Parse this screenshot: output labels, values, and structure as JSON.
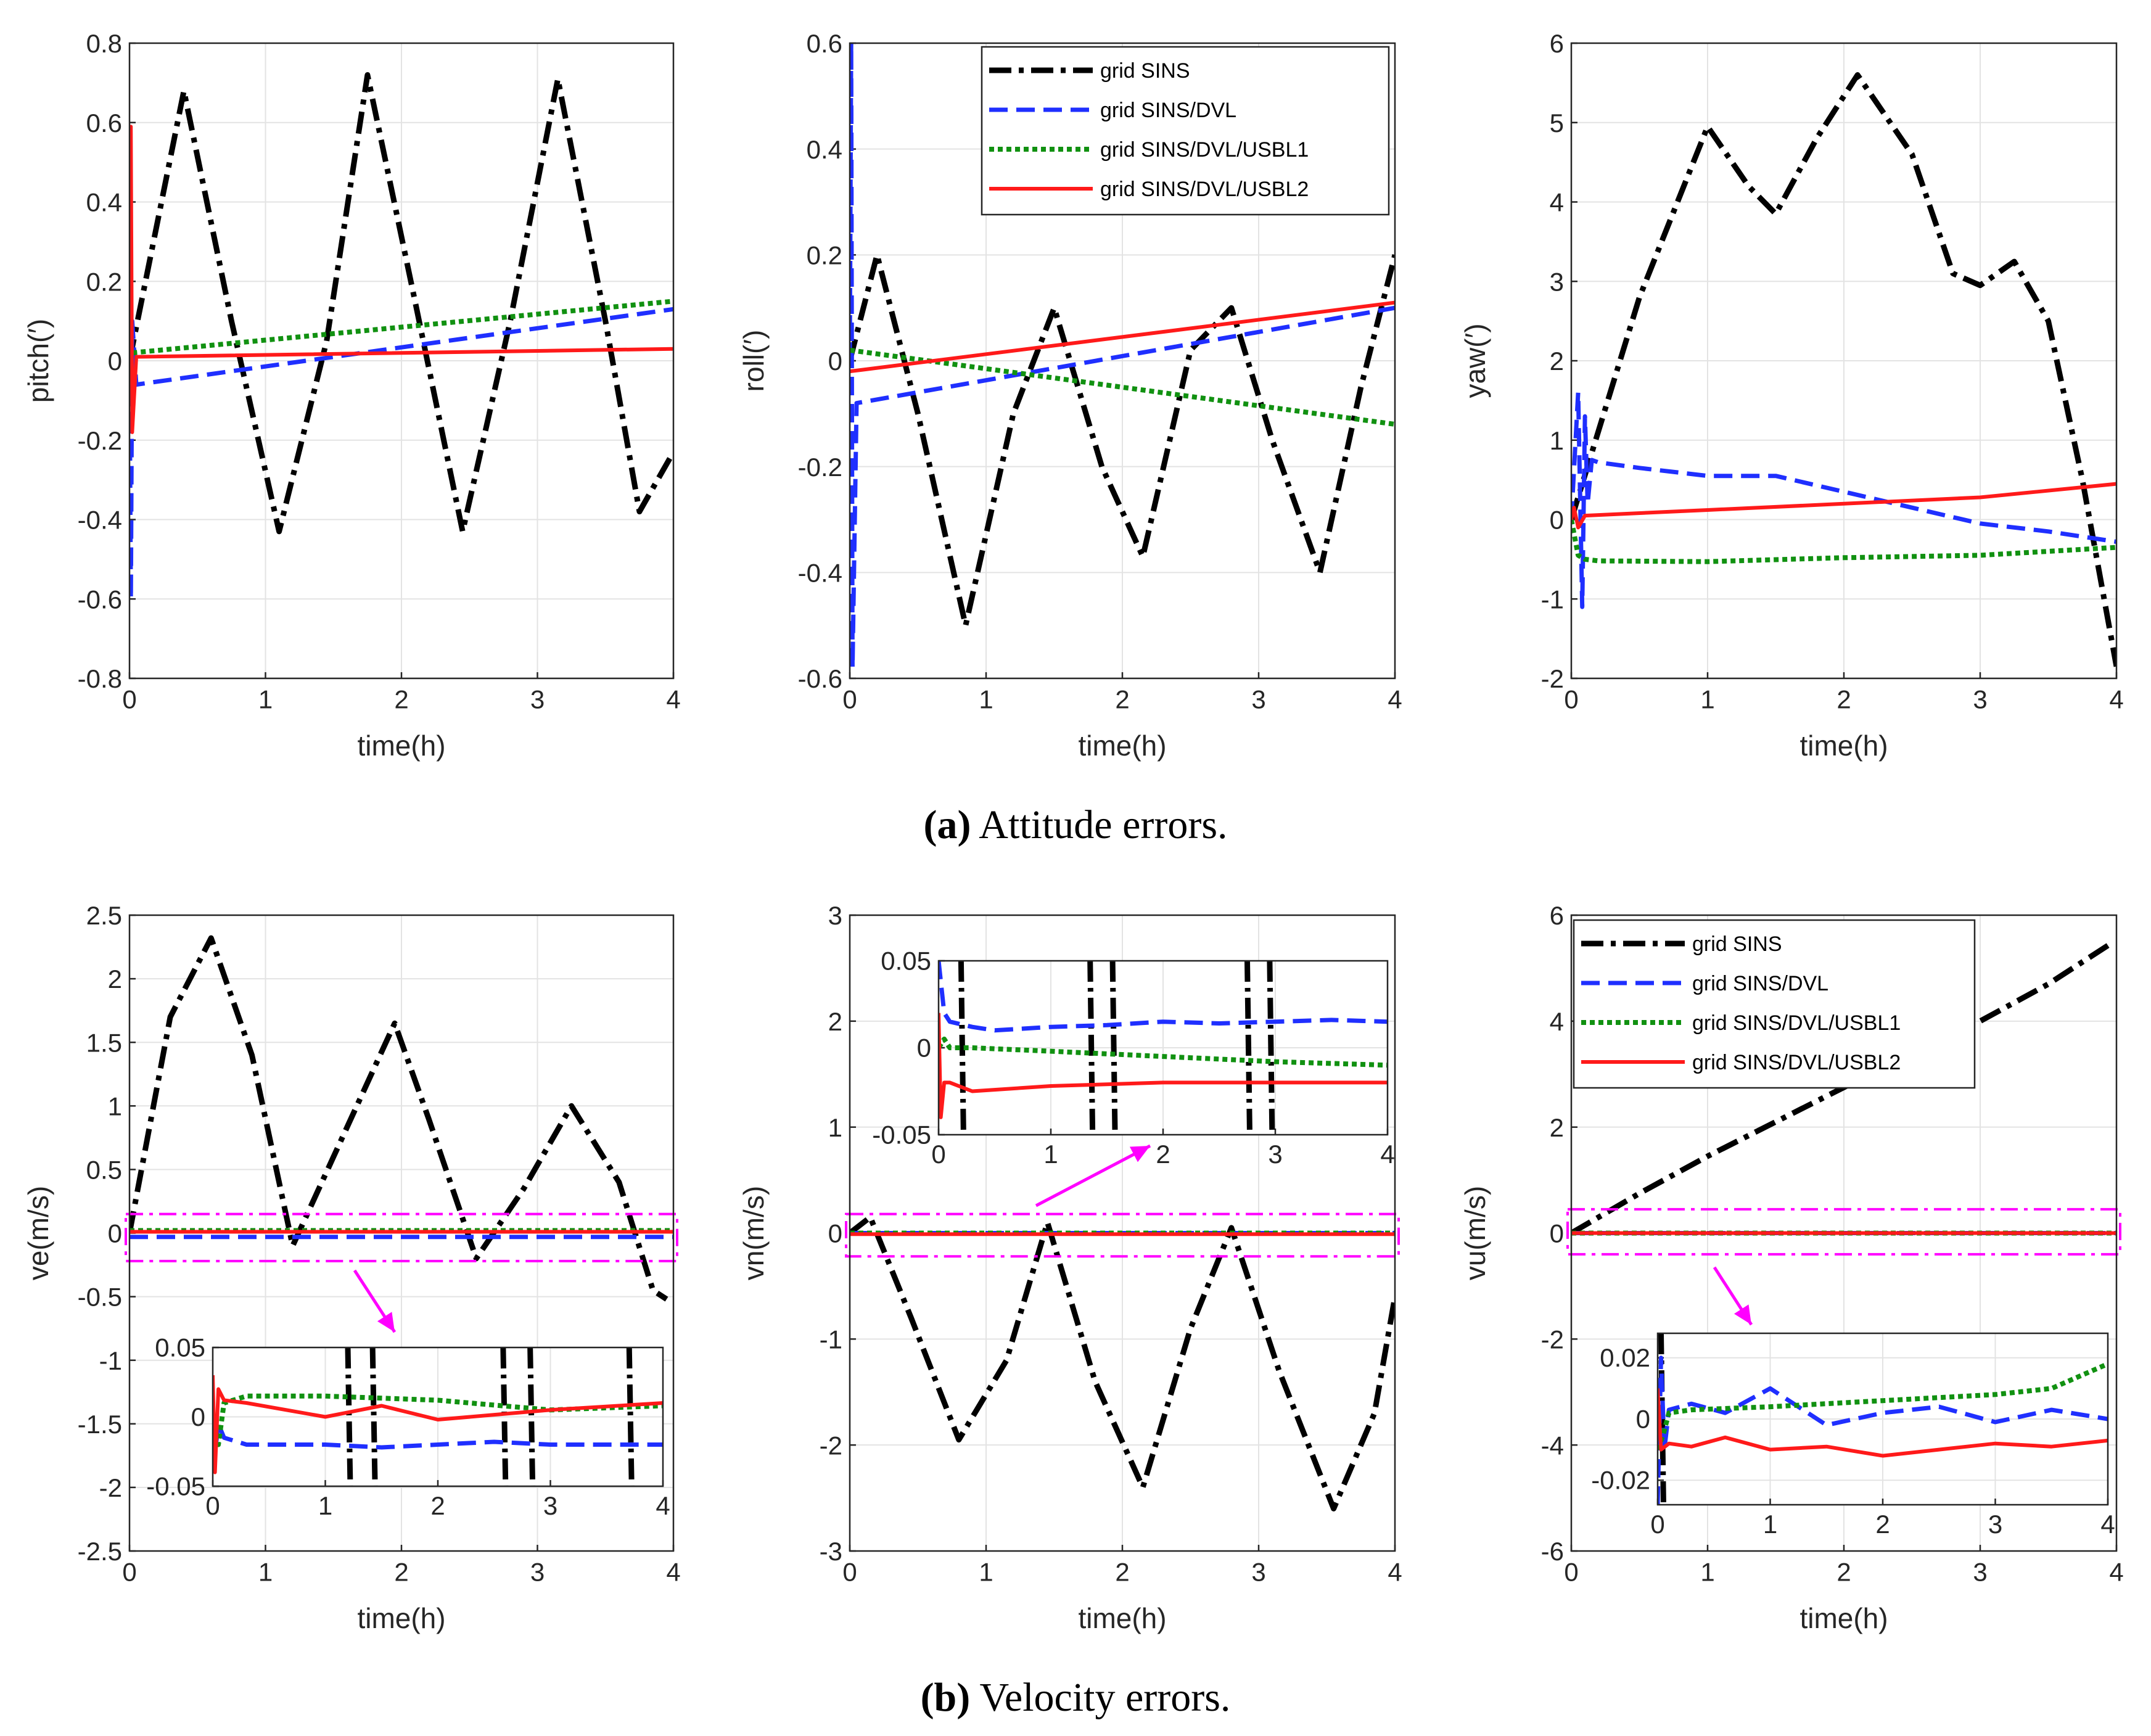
{
  "figure": {
    "caption_a": {
      "tag": "(a)",
      "text": " Attitude errors."
    },
    "caption_b": {
      "tag": "(b)",
      "text": " Velocity errors."
    }
  },
  "colors": {
    "grid SINS": "#000000",
    "grid SINS/DVL": "#1f2fff",
    "grid SINS/DVL/USBL1": "#119111",
    "grid SINS/DVL/USBL2": "#ff1a1a",
    "highlight": "#ff00ff"
  },
  "chart_data": [
    {
      "id": "pitch",
      "type": "line",
      "xlabel": "time(h)",
      "ylabel": "pitch(′)",
      "xlim": [
        0,
        4
      ],
      "ylim": [
        -0.8,
        0.8
      ],
      "xticks": [
        0,
        1,
        2,
        3,
        4
      ],
      "yticks": [
        -0.8,
        -0.6,
        -0.4,
        -0.2,
        0,
        0.2,
        0.4,
        0.6,
        0.8
      ],
      "series": [
        {
          "name": "grid SINS",
          "x": [
            0,
            0.4,
            0.75,
            1.1,
            1.45,
            1.75,
            2.1,
            2.45,
            2.8,
            3.15,
            3.5,
            3.75,
            4.0
          ],
          "y": [
            0,
            0.68,
            0.1,
            -0.43,
            0.05,
            0.72,
            0.15,
            -0.43,
            0.1,
            0.71,
            0.1,
            -0.38,
            -0.23
          ]
        },
        {
          "name": "grid SINS/DVL",
          "x": [
            0,
            0.01,
            0.02,
            0.05,
            4
          ],
          "y": [
            0,
            -0.6,
            0.1,
            -0.06,
            0.13
          ]
        },
        {
          "name": "grid SINS/DVL/USBL1",
          "x": [
            0.02,
            4
          ],
          "y": [
            0.02,
            0.15
          ]
        },
        {
          "name": "grid SINS/DVL/USBL2",
          "x": [
            0,
            0.01,
            0.02,
            0.05,
            4
          ],
          "y": [
            0,
            0.59,
            -0.18,
            0.01,
            0.03
          ]
        }
      ]
    },
    {
      "id": "roll",
      "type": "line",
      "xlabel": "time(h)",
      "ylabel": "roll(′)",
      "xlim": [
        0,
        4
      ],
      "ylim": [
        -0.6,
        0.6
      ],
      "xticks": [
        0,
        1,
        2,
        3,
        4
      ],
      "yticks": [
        -0.6,
        -0.4,
        -0.2,
        0,
        0.2,
        0.4,
        0.6
      ],
      "legend": {
        "location": "top-right",
        "entries": [
          "grid SINS",
          "grid SINS/DVL",
          "grid SINS/DVL/USBL1",
          "grid SINS/DVL/USBL2"
        ]
      },
      "series": [
        {
          "name": "grid SINS",
          "x": [
            0,
            0.2,
            0.5,
            0.85,
            1.2,
            1.5,
            1.85,
            2.15,
            2.5,
            2.8,
            3.1,
            3.45,
            3.75,
            4.0
          ],
          "y": [
            0,
            0.2,
            -0.1,
            -0.5,
            -0.1,
            0.1,
            -0.2,
            -0.37,
            0.02,
            0.1,
            -0.15,
            -0.4,
            -0.05,
            0.2
          ]
        },
        {
          "name": "grid SINS/DVL",
          "x": [
            0,
            0.01,
            0.02,
            0.05,
            4
          ],
          "y": [
            0,
            0.6,
            -0.58,
            -0.08,
            0.1
          ]
        },
        {
          "name": "grid SINS/DVL/USBL1",
          "x": [
            0,
            4
          ],
          "y": [
            0.02,
            -0.12
          ]
        },
        {
          "name": "grid SINS/DVL/USBL2",
          "x": [
            0,
            4
          ],
          "y": [
            -0.02,
            0.11
          ]
        }
      ]
    },
    {
      "id": "yaw",
      "type": "line",
      "xlabel": "time(h)",
      "ylabel": "yaw(′)",
      "xlim": [
        0,
        4
      ],
      "ylim": [
        -2,
        6
      ],
      "xticks": [
        0,
        1,
        2,
        3,
        4
      ],
      "yticks": [
        -2,
        -1,
        0,
        1,
        2,
        3,
        4,
        5,
        6
      ],
      "series": [
        {
          "name": "grid SINS",
          "x": [
            0,
            0.5,
            1,
            1.3,
            1.5,
            1.8,
            2.1,
            2.5,
            2.8,
            3.0,
            3.25,
            3.5,
            3.75,
            4.0
          ],
          "y": [
            0,
            2.8,
            4.95,
            4.2,
            3.85,
            4.8,
            5.6,
            4.6,
            3.1,
            2.95,
            3.25,
            2.5,
            0.5,
            -1.85
          ]
        },
        {
          "name": "grid SINS/DVL",
          "x": [
            0,
            0.05,
            0.08,
            0.1,
            0.12,
            0.15,
            0.2,
            0.5,
            1,
            1.5,
            2,
            2.5,
            3,
            3.5,
            4
          ],
          "y": [
            0,
            1.6,
            -1.1,
            1.3,
            0.2,
            0.75,
            0.72,
            0.65,
            0.55,
            0.55,
            0.35,
            0.15,
            -0.05,
            -0.15,
            -0.28
          ]
        },
        {
          "name": "grid SINS/DVL/USBL1",
          "x": [
            0,
            0.05,
            0.1,
            0.2,
            1,
            2,
            3,
            4
          ],
          "y": [
            0,
            -0.45,
            -0.5,
            -0.52,
            -0.53,
            -0.48,
            -0.45,
            -0.35
          ]
        },
        {
          "name": "grid SINS/DVL/USBL2",
          "x": [
            0,
            0.02,
            0.05,
            0.1,
            1,
            2,
            3,
            4
          ],
          "y": [
            0,
            0.15,
            -0.1,
            0.05,
            0.12,
            0.2,
            0.28,
            0.45
          ]
        }
      ]
    },
    {
      "id": "ve",
      "type": "line",
      "xlabel": "time(h)",
      "ylabel": "ve(m/s)",
      "xlim": [
        0,
        4
      ],
      "ylim": [
        -2.5,
        2.5
      ],
      "xticks": [
        0,
        1,
        2,
        3,
        4
      ],
      "yticks": [
        -2.5,
        -2,
        -1.5,
        -1,
        -0.5,
        0,
        0.5,
        1,
        1.5,
        2,
        2.5
      ],
      "highlight_box": [
        -0.22,
        0.15
      ],
      "series": [
        {
          "name": "grid SINS",
          "x": [
            0,
            0.3,
            0.6,
            0.9,
            1.2,
            1.5,
            1.95,
            2.2,
            2.55,
            2.9,
            3.25,
            3.6,
            3.85,
            3.95
          ],
          "y": [
            0,
            1.7,
            2.32,
            1.4,
            -0.1,
            0.6,
            1.65,
            0.9,
            -0.2,
            0.35,
            1.0,
            0.4,
            -0.45,
            -0.52
          ]
        },
        {
          "name": "grid SINS/DVL",
          "x": [
            0,
            4
          ],
          "y": [
            -0.03,
            -0.03
          ]
        },
        {
          "name": "grid SINS/DVL/USBL1",
          "x": [
            0,
            4
          ],
          "y": [
            0.02,
            0.02
          ]
        },
        {
          "name": "grid SINS/DVL/USBL2",
          "x": [
            0,
            4
          ],
          "y": [
            0.01,
            0.01
          ]
        }
      ],
      "inset": {
        "xlim": [
          0,
          4
        ],
        "ylim": [
          -0.05,
          0.05
        ],
        "xticks": [
          0,
          1,
          2,
          3,
          4
        ],
        "yticks": [
          -0.05,
          0,
          0.05
        ],
        "xticklabels": [
          "0",
          "1",
          "2",
          "3",
          "4"
        ],
        "yticklabels": [
          "-0.05",
          "0",
          "0.05"
        ],
        "series": [
          {
            "name": "grid SINS/DVL",
            "x": [
              0,
              0.05,
              0.1,
              0.3,
              0.5,
              1,
              1.5,
              2,
              2.5,
              3,
              3.5,
              4
            ],
            "y": [
              -0.04,
              -0.005,
              -0.015,
              -0.02,
              -0.02,
              -0.02,
              -0.022,
              -0.02,
              -0.018,
              -0.02,
              -0.02,
              -0.02
            ]
          },
          {
            "name": "grid SINS/DVL/USBL1",
            "x": [
              0,
              0.05,
              0.1,
              0.3,
              1,
              2,
              3,
              4
            ],
            "y": [
              0,
              -0.02,
              0.01,
              0.015,
              0.015,
              0.012,
              0.005,
              0.008
            ]
          },
          {
            "name": "grid SINS/DVL/USBL2",
            "x": [
              0,
              0.02,
              0.05,
              0.1,
              0.3,
              1,
              1.5,
              2,
              3,
              4
            ],
            "y": [
              0.03,
              -0.04,
              0.02,
              0.012,
              0.01,
              0.0,
              0.008,
              -0.002,
              0.005,
              0.01
            ]
          }
        ],
        "sins_crossings": [
          1.2,
          1.42,
          2.58,
          2.82,
          3.7
        ]
      }
    },
    {
      "id": "vn",
      "type": "line",
      "xlabel": "time(h)",
      "ylabel": "vn(m/s)",
      "xlim": [
        0,
        4
      ],
      "ylim": [
        -3,
        3
      ],
      "xticks": [
        0,
        1,
        2,
        3,
        4
      ],
      "yticks": [
        -3,
        -2,
        -1,
        0,
        1,
        2,
        3
      ],
      "highlight_box": [
        -0.22,
        0.18
      ],
      "series": [
        {
          "name": "grid SINS",
          "x": [
            0,
            0.15,
            0.45,
            0.8,
            1.15,
            1.45,
            1.8,
            2.15,
            2.5,
            2.8,
            3.15,
            3.55,
            3.85,
            4.0
          ],
          "y": [
            0,
            0.15,
            -0.8,
            -1.95,
            -1.2,
            0.1,
            -1.4,
            -2.4,
            -0.9,
            0.05,
            -1.3,
            -2.6,
            -1.7,
            -0.6
          ]
        },
        {
          "name": "grid SINS/DVL",
          "x": [
            0,
            4
          ],
          "y": [
            0.0,
            0.0
          ]
        },
        {
          "name": "grid SINS/DVL/USBL1",
          "x": [
            0,
            4
          ],
          "y": [
            0.0,
            0.0
          ]
        },
        {
          "name": "grid SINS/DVL/USBL2",
          "x": [
            0,
            4
          ],
          "y": [
            -0.01,
            -0.01
          ]
        }
      ],
      "inset": {
        "xlim": [
          0,
          4
        ],
        "ylim": [
          -0.05,
          0.05
        ],
        "xticks": [
          0,
          1,
          2,
          3,
          4
        ],
        "yticks": [
          -0.05,
          0,
          0.05
        ],
        "xticklabels": [
          "0",
          "1",
          "2",
          "3",
          "4"
        ],
        "yticklabels": [
          "-0.05",
          "0",
          "0.05"
        ],
        "series": [
          {
            "name": "grid SINS/DVL",
            "x": [
              0,
              0.05,
              0.1,
              0.3,
              0.5,
              1,
              1.5,
              2,
              2.5,
              3,
              3.5,
              4
            ],
            "y": [
              0.05,
              0.02,
              0.015,
              0.012,
              0.01,
              0.012,
              0.013,
              0.015,
              0.014,
              0.015,
              0.016,
              0.015
            ]
          },
          {
            "name": "grid SINS/DVL/USBL1",
            "x": [
              0,
              0.05,
              0.1,
              0.3,
              1,
              2,
              3,
              4
            ],
            "y": [
              0,
              0.005,
              0.0,
              0.0,
              -0.002,
              -0.005,
              -0.008,
              -0.01
            ]
          },
          {
            "name": "grid SINS/DVL/USBL2",
            "x": [
              0,
              0.02,
              0.05,
              0.1,
              0.3,
              1,
              2,
              3,
              4
            ],
            "y": [
              0.02,
              -0.04,
              -0.02,
              -0.02,
              -0.025,
              -0.022,
              -0.02,
              -0.02,
              -0.02
            ]
          }
        ],
        "sins_crossings": [
          0.2,
          1.35,
          1.55,
          2.75,
          2.95
        ]
      }
    },
    {
      "id": "vu",
      "type": "line",
      "xlabel": "time(h)",
      "ylabel": "vu(m/s)",
      "xlim": [
        0,
        4
      ],
      "ylim": [
        -6,
        6
      ],
      "xticks": [
        0,
        1,
        2,
        3,
        4
      ],
      "yticks": [
        -6,
        -4,
        -2,
        0,
        2,
        4,
        6
      ],
      "highlight_box": [
        -0.4,
        0.45
      ],
      "legend": {
        "location": "top-left",
        "entries": [
          "grid SINS",
          "grid SINS/DVL",
          "grid SINS/DVL/USBL1",
          "grid SINS/DVL/USBL2"
        ]
      },
      "series": [
        {
          "name": "grid SINS",
          "x": [
            0,
            0.5,
            1,
            1.5,
            2,
            2.5,
            3,
            3.5,
            3.95
          ],
          "y": [
            0,
            0.75,
            1.45,
            2.1,
            2.75,
            3.4,
            4.0,
            4.7,
            5.45
          ]
        },
        {
          "name": "grid SINS/DVL",
          "x": [
            0,
            4
          ],
          "y": [
            0.0,
            0.0
          ]
        },
        {
          "name": "grid SINS/DVL/USBL1",
          "x": [
            0,
            4
          ],
          "y": [
            0.0,
            0.0
          ]
        },
        {
          "name": "grid SINS/DVL/USBL2",
          "x": [
            0,
            4
          ],
          "y": [
            0.0,
            0.0
          ]
        }
      ],
      "inset": {
        "xlim": [
          0,
          4
        ],
        "ylim": [
          -0.028,
          0.028
        ],
        "xticks": [
          0,
          1,
          2,
          3,
          4
        ],
        "yticks": [
          -0.02,
          0,
          0.02
        ],
        "xticklabels": [
          "0",
          "1",
          "2",
          "3",
          "4"
        ],
        "yticklabels": [
          "-0.02",
          "0",
          "0.02"
        ],
        "series": [
          {
            "name": "grid SINS/DVL",
            "x": [
              0,
              0.03,
              0.06,
              0.1,
              0.3,
              0.6,
              1,
              1.5,
              2,
              2.5,
              3,
              3.5,
              4
            ],
            "y": [
              -0.028,
              0.02,
              -0.01,
              0.003,
              0.005,
              0.002,
              0.01,
              -0.002,
              0.002,
              0.004,
              -0.001,
              0.003,
              0.0
            ]
          },
          {
            "name": "grid SINS/DVL/USBL1",
            "x": [
              0,
              0.05,
              0.1,
              0.3,
              1,
              2,
              3,
              3.5,
              4
            ],
            "y": [
              -0.01,
              -0.005,
              0.002,
              0.003,
              0.004,
              0.006,
              0.008,
              0.01,
              0.018
            ]
          },
          {
            "name": "grid SINS/DVL/USBL2",
            "x": [
              0,
              0.03,
              0.1,
              0.3,
              0.6,
              1,
              1.5,
              2,
              2.5,
              3,
              3.5,
              4
            ],
            "y": [
              0.01,
              -0.01,
              -0.008,
              -0.009,
              -0.006,
              -0.01,
              -0.009,
              -0.012,
              -0.01,
              -0.008,
              -0.009,
              -0.007
            ]
          }
        ],
        "sins_crossings": [
          0.03
        ]
      }
    }
  ]
}
